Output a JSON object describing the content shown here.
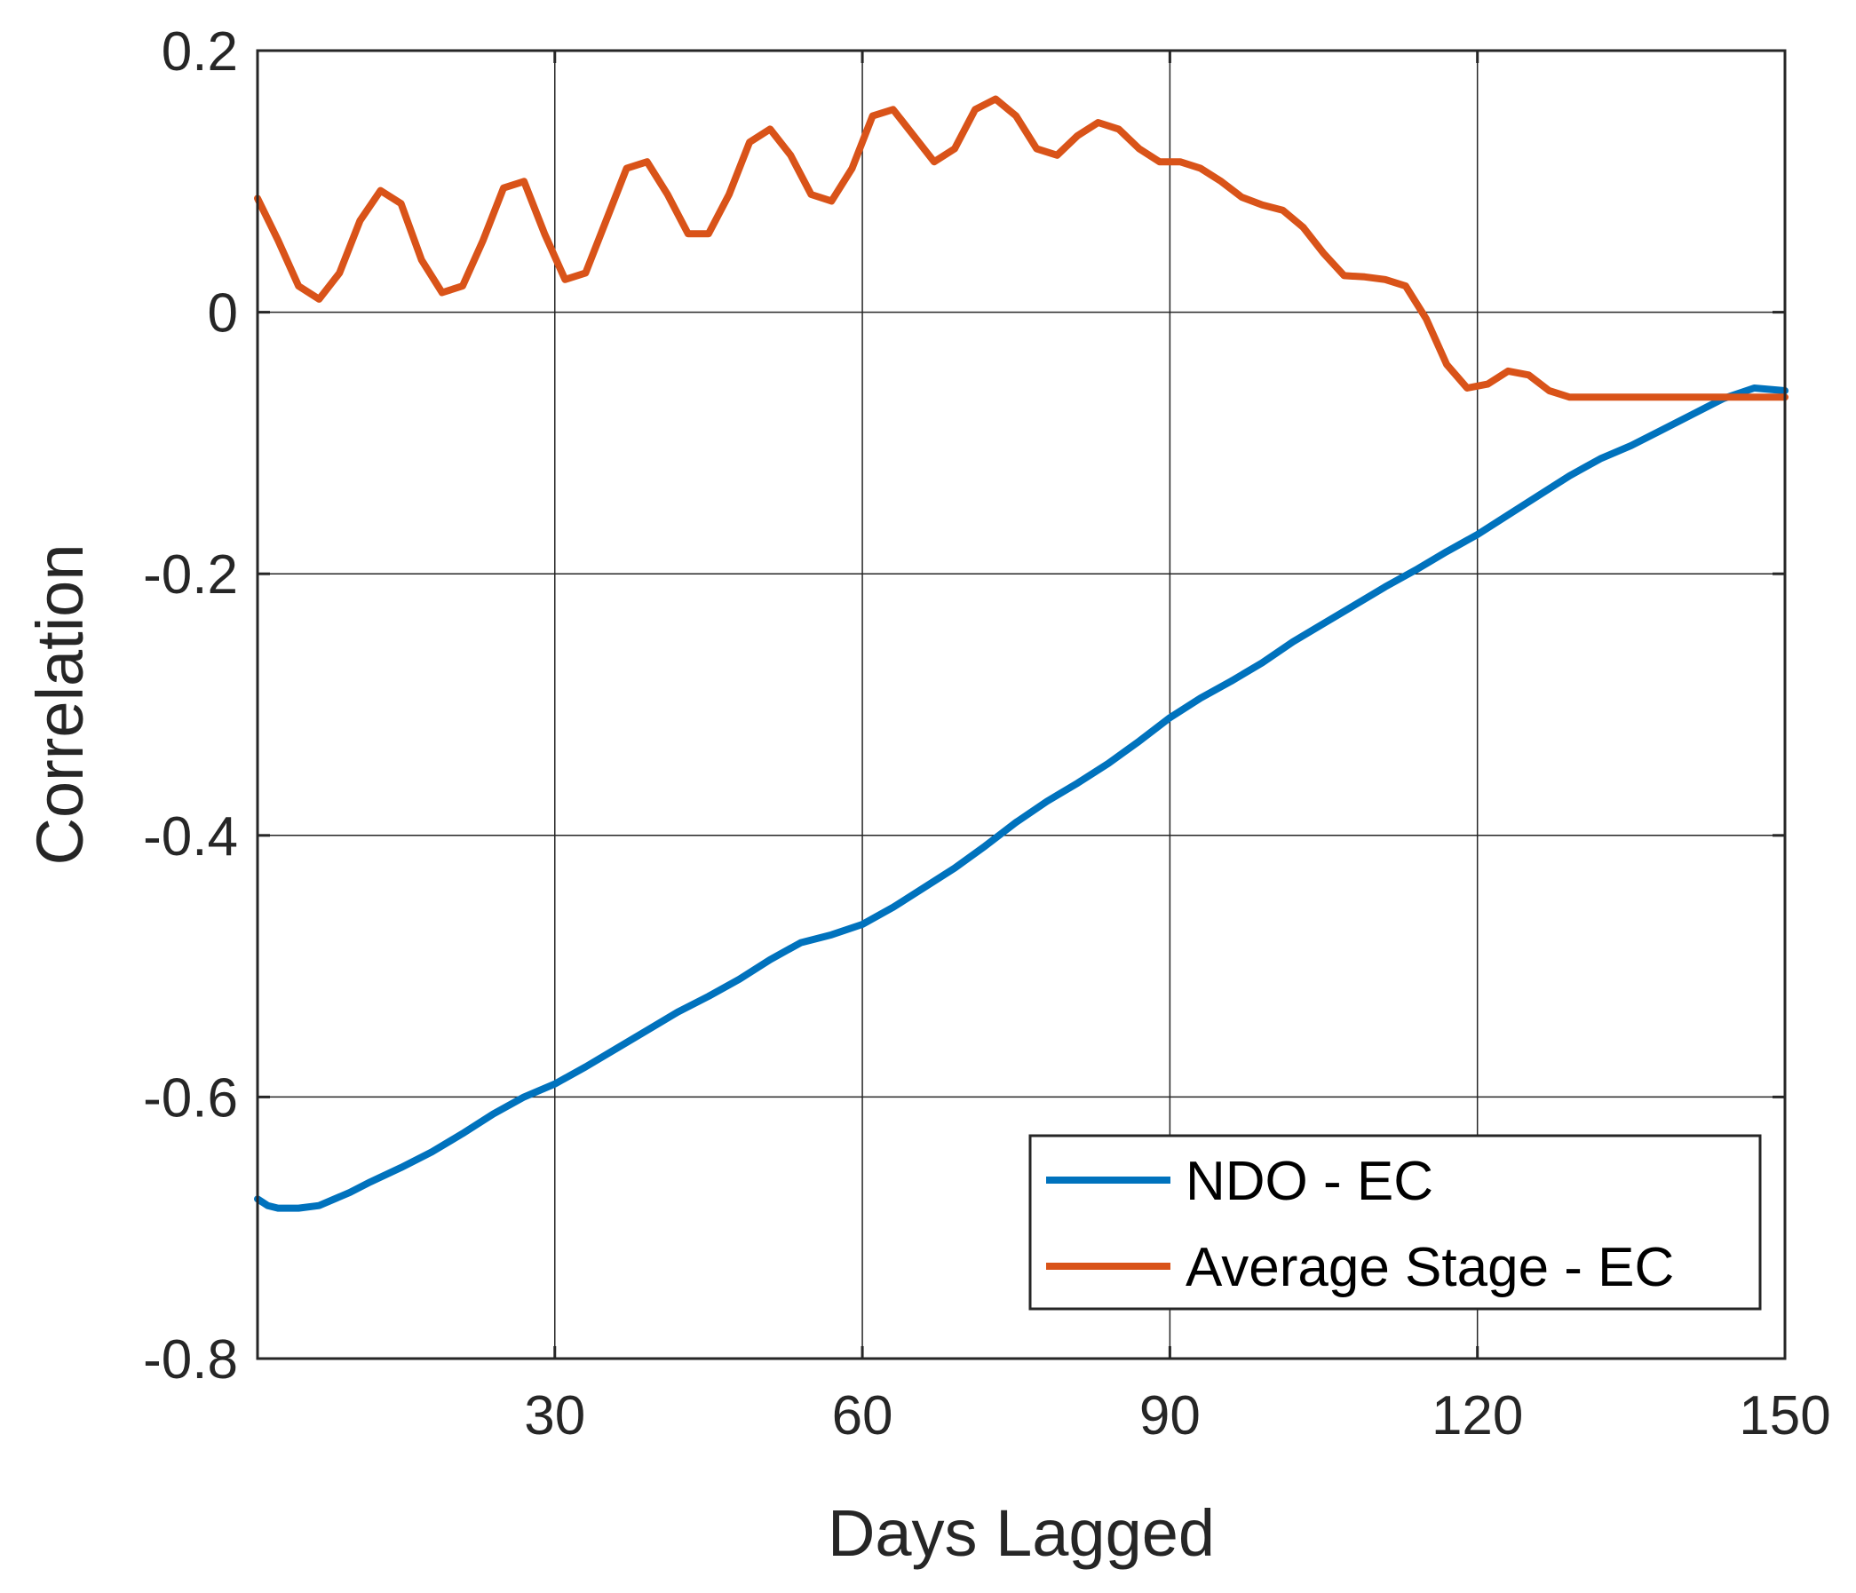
{
  "chart_data": {
    "type": "line",
    "title": "",
    "xlabel": "Days Lagged",
    "ylabel": "Correlation",
    "xlim": [
      1,
      150
    ],
    "ylim": [
      -0.8,
      0.2
    ],
    "xticks": [
      30,
      60,
      90,
      120,
      150
    ],
    "xtick_labels": [
      "30",
      "60",
      "90",
      "120",
      "150"
    ],
    "yticks": [
      -0.8,
      -0.6,
      -0.4,
      -0.2,
      0,
      0.2
    ],
    "ytick_labels": [
      "-0.8",
      "-0.6",
      "-0.4",
      "-0.2",
      "0",
      "0.2"
    ],
    "grid": true,
    "legend_position": "bottom-right",
    "series": [
      {
        "name": "NDO - EC",
        "color": "#0072BD",
        "x": [
          1,
          2,
          3,
          5,
          7,
          10,
          12,
          15,
          18,
          21,
          24,
          27,
          30,
          33,
          36,
          39,
          42,
          45,
          48,
          51,
          54,
          57,
          60,
          63,
          66,
          69,
          72,
          75,
          78,
          81,
          84,
          87,
          90,
          93,
          96,
          99,
          102,
          105,
          108,
          111,
          114,
          117,
          120,
          123,
          126,
          129,
          132,
          135,
          138,
          141,
          144,
          147,
          150
        ],
        "y": [
          -0.678,
          -0.683,
          -0.685,
          -0.685,
          -0.683,
          -0.673,
          -0.665,
          -0.654,
          -0.642,
          -0.628,
          -0.613,
          -0.6,
          -0.59,
          -0.577,
          -0.563,
          -0.549,
          -0.535,
          -0.523,
          -0.51,
          -0.495,
          -0.482,
          -0.476,
          -0.468,
          -0.455,
          -0.44,
          -0.425,
          -0.408,
          -0.39,
          -0.374,
          -0.36,
          -0.345,
          -0.328,
          -0.31,
          -0.295,
          -0.282,
          -0.268,
          -0.252,
          -0.238,
          -0.224,
          -0.21,
          -0.197,
          -0.183,
          -0.17,
          -0.155,
          -0.14,
          -0.125,
          -0.112,
          -0.102,
          -0.09,
          -0.078,
          -0.066,
          -0.058,
          -0.06
        ]
      },
      {
        "name": "Average Stage - EC",
        "color": "#D95319",
        "x": [
          1,
          3,
          5,
          7,
          9,
          11,
          13,
          15,
          17,
          19,
          21,
          23,
          25,
          27,
          29,
          31,
          33,
          35,
          37,
          39,
          41,
          43,
          45,
          47,
          49,
          51,
          53,
          55,
          57,
          59,
          61,
          63,
          65,
          67,
          69,
          71,
          73,
          75,
          77,
          79,
          81,
          83,
          85,
          87,
          89,
          91,
          93,
          95,
          97,
          99,
          101,
          103,
          105,
          107,
          109,
          111,
          113,
          115,
          117,
          119,
          121,
          123,
          125,
          127,
          129,
          131,
          133,
          135,
          137,
          139,
          141,
          143,
          145,
          147,
          149,
          150
        ],
        "y": [
          0.087,
          0.055,
          0.02,
          0.01,
          0.03,
          0.07,
          0.093,
          0.083,
          0.04,
          0.015,
          0.02,
          0.055,
          0.095,
          0.1,
          0.06,
          0.025,
          0.03,
          0.07,
          0.11,
          0.115,
          0.09,
          0.06,
          0.06,
          0.09,
          0.13,
          0.14,
          0.12,
          0.09,
          0.085,
          0.11,
          0.15,
          0.155,
          0.135,
          0.115,
          0.125,
          0.155,
          0.163,
          0.15,
          0.125,
          0.12,
          0.135,
          0.145,
          0.14,
          0.125,
          0.115,
          0.115,
          0.11,
          0.1,
          0.088,
          0.082,
          0.078,
          0.065,
          0.045,
          0.028,
          0.027,
          0.025,
          0.02,
          -0.005,
          -0.04,
          -0.058,
          -0.055,
          -0.045,
          -0.048,
          -0.06,
          -0.065,
          -0.065,
          -0.065,
          -0.065,
          -0.065,
          -0.065,
          -0.065,
          -0.065,
          -0.065,
          -0.065,
          -0.065,
          -0.065
        ]
      }
    ]
  }
}
